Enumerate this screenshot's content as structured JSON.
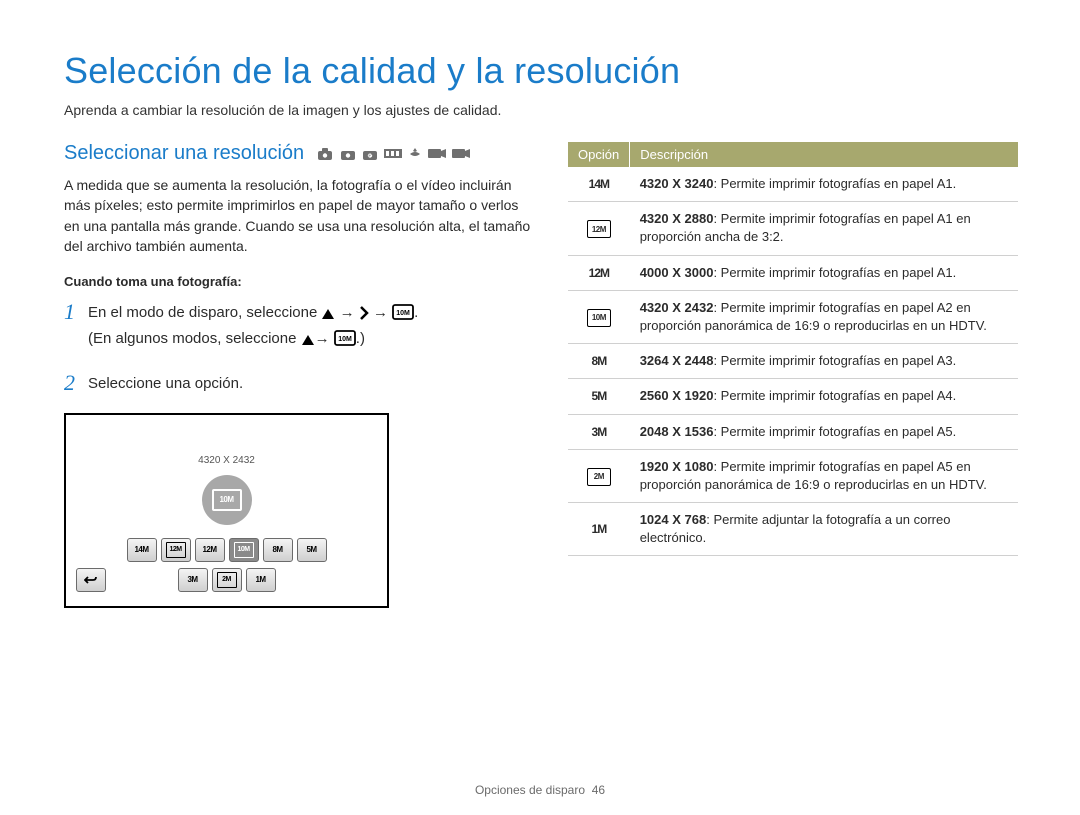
{
  "title": "Selección de la calidad y la resolución",
  "intro": "Aprenda a cambiar la resolución de la imagen y los ajustes de calidad.",
  "section": {
    "heading": "Seleccionar una resolución",
    "mode_icon_count": 7,
    "body": "A medida que se aumenta la resolución, la fotografía o el vídeo incluirán más píxeles; esto permite imprimirlos en papel de mayor tamaño o verlos en una pantalla más grande. Cuando se usa una resolución alta, el tamaño del archivo también aumenta.",
    "sub_label": "Cuando toma una fotografía:"
  },
  "steps": {
    "s1_a": "En el modo de disparo, seleccione ",
    "s1_b": " → ",
    "s1_c": " → ",
    "s1_d": ".",
    "s1_e": "(En algunos modos, seleccione ",
    "s1_f": "→ ",
    "s1_g": ".)",
    "s2": "Seleccione una opción."
  },
  "screenshot": {
    "label": "4320 X 2432",
    "big_icon_text": "10M",
    "row1": [
      "14M",
      "12M",
      "12M",
      "10M",
      "8M",
      "5M"
    ],
    "row1_boxed": [
      false,
      true,
      false,
      true,
      false,
      false
    ],
    "row1_selected_index": 3,
    "row2": [
      "3M",
      "2M",
      "1M"
    ],
    "row2_boxed": [
      false,
      true,
      false
    ]
  },
  "table": {
    "headers": {
      "c1": "Opción",
      "c2": "Descripción"
    },
    "rows": [
      {
        "icon_type": "text",
        "icon_text": "14M",
        "bold": "4320 X 3240",
        "rest": ": Permite imprimir fotografías en papel A1."
      },
      {
        "icon_type": "box",
        "icon_text": "12M",
        "bold": "4320 X 2880",
        "rest": ": Permite imprimir fotografías en papel A1 en proporción ancha de 3:2."
      },
      {
        "icon_type": "text",
        "icon_text": "12M",
        "bold": "4000 X 3000",
        "rest": ": Permite imprimir fotografías en papel A1."
      },
      {
        "icon_type": "box",
        "icon_text": "10M",
        "bold": "4320 X 2432",
        "rest": ": Permite imprimir fotografías en papel A2 en proporción panorámica de 16:9 o reproducirlas en un HDTV."
      },
      {
        "icon_type": "text",
        "icon_text": "8M",
        "bold": "3264 X 2448",
        "rest": ": Permite imprimir fotografías en papel A3."
      },
      {
        "icon_type": "text",
        "icon_text": "5M",
        "bold": "2560 X 1920",
        "rest": ": Permite imprimir fotografías en papel A4."
      },
      {
        "icon_type": "text",
        "icon_text": "3M",
        "bold": "2048 X 1536",
        "rest": ": Permite imprimir fotografías en papel A5."
      },
      {
        "icon_type": "box",
        "icon_text": "2M",
        "bold": "1920 X 1080",
        "rest": ": Permite imprimir fotografías en papel A5 en proporción panorámica de 16:9 o reproducirlas en un HDTV."
      },
      {
        "icon_type": "text",
        "icon_text": "1M",
        "bold": "1024 X 768",
        "rest": ": Permite adjuntar la fotografía a un correo electrónico."
      }
    ]
  },
  "footer": {
    "section": "Opciones de disparo",
    "page": "46"
  },
  "colors": {
    "accent": "#1a7cc9",
    "khaki": "#a7a86e",
    "text": "#2b2b2b",
    "icon_gray": "#6f6f6f",
    "footer": "#6b6b6b",
    "divider": "#d0d0d0"
  }
}
